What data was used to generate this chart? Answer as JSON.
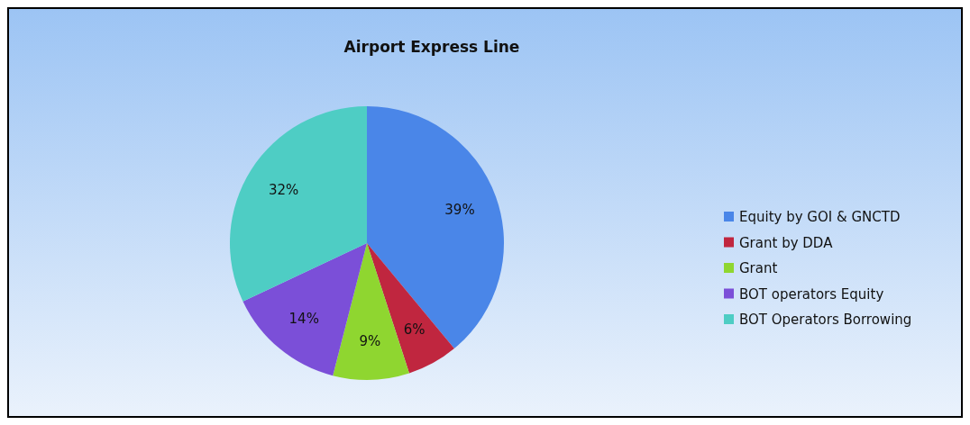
{
  "chart_data": {
    "type": "pie",
    "title": "Airport Express Line",
    "categories": [
      "Equity by GOI & GNCTD",
      "Grant by DDA",
      "Grant",
      "BOT operators Equity",
      "BOT Operators Borrowing"
    ],
    "values": [
      39,
      6,
      9,
      14,
      32
    ],
    "colors": [
      "#4a86e8",
      "#c0263f",
      "#8fd630",
      "#7b4fd8",
      "#4ecdc4"
    ],
    "value_labels": [
      "39%",
      "6%",
      "9%",
      "14%",
      "32%"
    ],
    "legend": "right"
  }
}
